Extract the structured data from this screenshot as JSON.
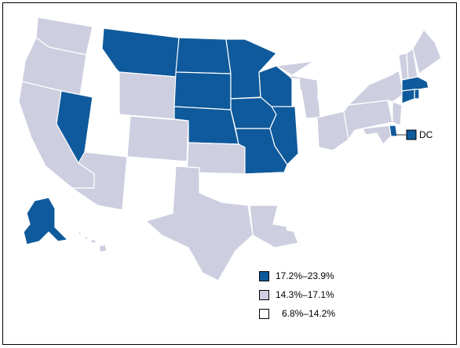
{
  "colors": {
    "high": "#0f5a9c",
    "mid": "#cdcfe0",
    "low": "#ffffff",
    "border": "#ffffff",
    "frame": "#000000"
  },
  "legend": [
    {
      "label": "17.2%–23.9%",
      "class": "high"
    },
    {
      "label": "14.3%–17.1%",
      "class": "mid"
    },
    {
      "label": "6.8%–14.2%",
      "class": "low"
    }
  ],
  "dc": {
    "label": "DC",
    "class": "high"
  },
  "states": {
    "WA": "mid",
    "OR": "mid",
    "CA": "mid",
    "ID": "low",
    "NV": "high",
    "MT": "high",
    "WY": "mid",
    "UT": "low",
    "AZ": "mid",
    "CO": "mid",
    "NM": "low",
    "ND": "high",
    "SD": "high",
    "NE": "high",
    "KS": "mid",
    "OK": "low",
    "TX": "mid",
    "MN": "high",
    "IA": "high",
    "MO": "high",
    "AR": "low",
    "LA": "mid",
    "WI": "high",
    "IL": "high",
    "MI": "mid",
    "IN": "low",
    "OH": "mid",
    "KY": "low",
    "TN": "low",
    "MS": "low",
    "AL": "low",
    "GA": "low",
    "FL": "low",
    "SC": "low",
    "NC": "low",
    "VA": "low",
    "WV": "low",
    "PA": "mid",
    "NY": "mid",
    "VT": "mid",
    "NH": "mid",
    "ME": "mid",
    "MA": "high",
    "RI": "high",
    "CT": "high",
    "NJ": "mid",
    "DE": "high",
    "MD": "mid",
    "AK": "high",
    "HI": "mid"
  }
}
